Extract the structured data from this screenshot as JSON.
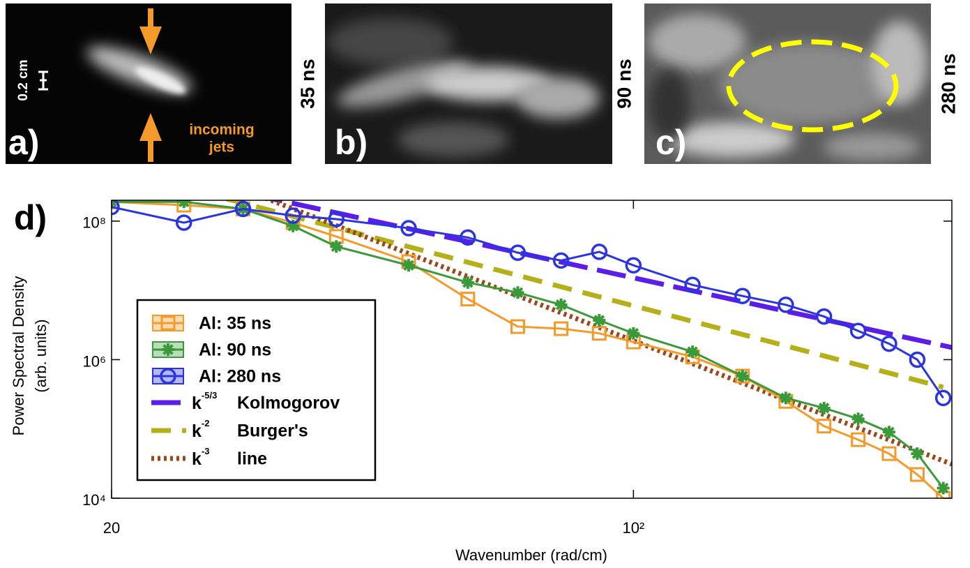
{
  "images": [
    {
      "label": "a)",
      "time": "35 ns",
      "scale": "0.2 cm",
      "annotation": [
        "incoming",
        "jets"
      ]
    },
    {
      "label": "b)",
      "time": "90 ns"
    },
    {
      "label": "c)",
      "time": "280 ns"
    }
  ],
  "chart_data": {
    "type": "line",
    "panel_label": "d)",
    "xlabel": "Wavenumber (rad/cm)",
    "ylabel": [
      "Power Spectral Density",
      "(arb. units)"
    ],
    "xscale": "log",
    "yscale": "log",
    "xlim": [
      20,
      267
    ],
    "ylim": [
      10000,
      200000000
    ],
    "xticks": [
      20,
      {
        "value": 100,
        "label": "10²"
      }
    ],
    "yticks": [
      {
        "value": 10000,
        "label": "10⁴"
      },
      {
        "value": 1000000,
        "label": "10⁶"
      },
      {
        "value": 100000000,
        "label": "10⁸"
      }
    ],
    "legend": "lower left",
    "x": [
      20,
      25,
      30,
      35,
      40,
      50,
      60,
      70,
      80,
      90,
      100,
      120,
      140,
      160,
      180,
      200,
      220,
      240,
      260
    ],
    "series": [
      {
        "name": "Al: 35 ns",
        "color": "#f39a2a",
        "marker": "square",
        "values": [
          190000000,
          170000000,
          150000000,
          95000000,
          60000000,
          26000000,
          7500000,
          3000000,
          2800000,
          2400000,
          1800000,
          1100000,
          580000,
          250000,
          110000,
          70000,
          44000,
          22000,
          10000
        ]
      },
      {
        "name": "Al: 90 ns",
        "color": "#3a9a3a",
        "marker": "asterisk",
        "values": [
          190000000,
          190000000,
          150000000,
          85000000,
          43000000,
          23000000,
          13000000,
          9300000,
          6200000,
          3700000,
          2400000,
          1300000,
          580000,
          280000,
          200000,
          140000,
          90000,
          44000,
          14000
        ]
      },
      {
        "name": "Al: 280 ns",
        "color": "#2a35e0",
        "marker": "circle",
        "values": [
          160000000,
          95000000,
          150000000,
          120000000,
          107000000,
          79000000,
          58000000,
          35000000,
          27000000,
          36000000,
          23000000,
          12000000,
          8300000,
          6200000,
          4200000,
          2600000,
          1700000,
          1000000,
          280000
        ]
      }
    ],
    "reference_lines": [
      {
        "base": "k",
        "exponent": "-5/3",
        "name": "Kolmogorov",
        "color": "#5a1ee8",
        "dash": "long-dash",
        "x": [
          31,
          267
        ],
        "values": [
          240000000,
          1500000
        ]
      },
      {
        "base": "k",
        "exponent": "-2",
        "name": "Burger's",
        "color": "#b5b01a",
        "dash": "dash",
        "x": [
          28.5,
          260
        ],
        "values": [
          210000000,
          400000
        ]
      },
      {
        "base": "k",
        "exponent": "-3",
        "name": "line",
        "color": "#9a4a1a",
        "dash": "dotted",
        "x": [
          31,
          267
        ],
        "values": [
          250000000,
          31000
        ]
      }
    ]
  }
}
